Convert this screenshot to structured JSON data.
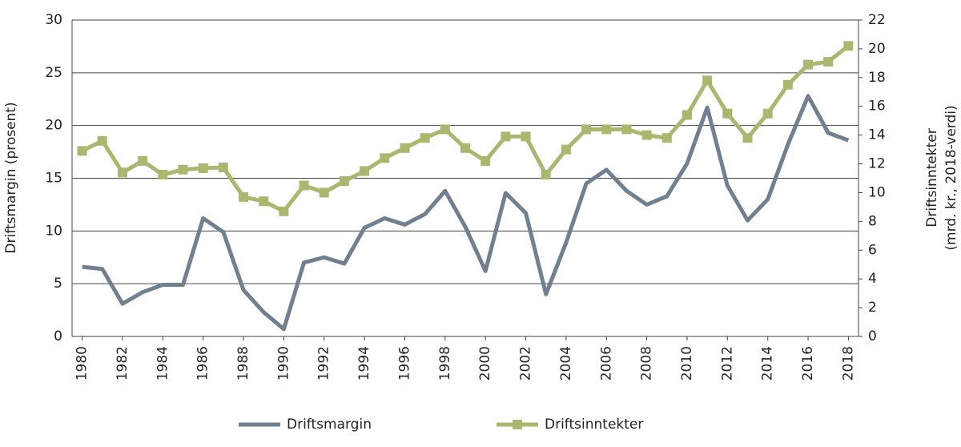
{
  "chart_data": {
    "type": "line",
    "ylabel": "Driftsmargin (prosent)",
    "y2label": [
      "Driftsinntekter",
      "(mrd. kr., 2018-verdi)"
    ],
    "x": [
      1980,
      1981,
      1982,
      1983,
      1984,
      1985,
      1986,
      1987,
      1988,
      1989,
      1990,
      1991,
      1992,
      1993,
      1994,
      1995,
      1996,
      1997,
      1998,
      1999,
      2000,
      2001,
      2002,
      2003,
      2004,
      2005,
      2006,
      2007,
      2008,
      2009,
      2010,
      2011,
      2012,
      2013,
      2014,
      2015,
      2016,
      2017,
      2018
    ],
    "xlim": [
      1979.5,
      2018.5
    ],
    "xticks": [
      1980,
      1982,
      1984,
      1986,
      1988,
      1990,
      1992,
      1994,
      1996,
      1998,
      2000,
      2002,
      2004,
      2006,
      2008,
      2010,
      2012,
      2014,
      2016,
      2018
    ],
    "ylim": [
      0,
      30
    ],
    "yticks": [
      0,
      5,
      10,
      15,
      20,
      25,
      30
    ],
    "y2lim": [
      0,
      22
    ],
    "y2ticks": [
      0,
      2,
      4,
      6,
      8,
      10,
      12,
      14,
      16,
      18,
      20,
      22
    ],
    "grid": true,
    "series": [
      {
        "name": "Driftsmargin",
        "color": "#71808f",
        "values": [
          6.6,
          6.4,
          3.1,
          4.2,
          4.9,
          4.9,
          11.2,
          9.9,
          4.4,
          2.3,
          0.7,
          7.0,
          7.5,
          6.9,
          10.3,
          11.2,
          10.6,
          11.6,
          13.8,
          10.4,
          6.2,
          13.6,
          11.7,
          4.0,
          8.9,
          14.5,
          15.8,
          13.8,
          12.5,
          13.3,
          16.4,
          21.7,
          14.3,
          11.0,
          13.0,
          18.2,
          22.8,
          19.3,
          18.6
        ]
      },
      {
        "name": "Driftsinntekter",
        "color": "#a9b86f",
        "axis": "y2",
        "marker": "square",
        "values": [
          12.9,
          13.6,
          11.4,
          12.2,
          11.25,
          11.6,
          11.7,
          11.75,
          9.7,
          9.4,
          8.7,
          10.5,
          10.0,
          10.8,
          11.5,
          12.4,
          13.1,
          13.8,
          14.4,
          13.1,
          12.2,
          13.9,
          13.9,
          11.25,
          13.0,
          14.4,
          14.4,
          14.4,
          14.0,
          13.8,
          15.4,
          17.8,
          15.5,
          13.8,
          15.5,
          17.5,
          18.9,
          19.1,
          20.2
        ]
      }
    ]
  }
}
